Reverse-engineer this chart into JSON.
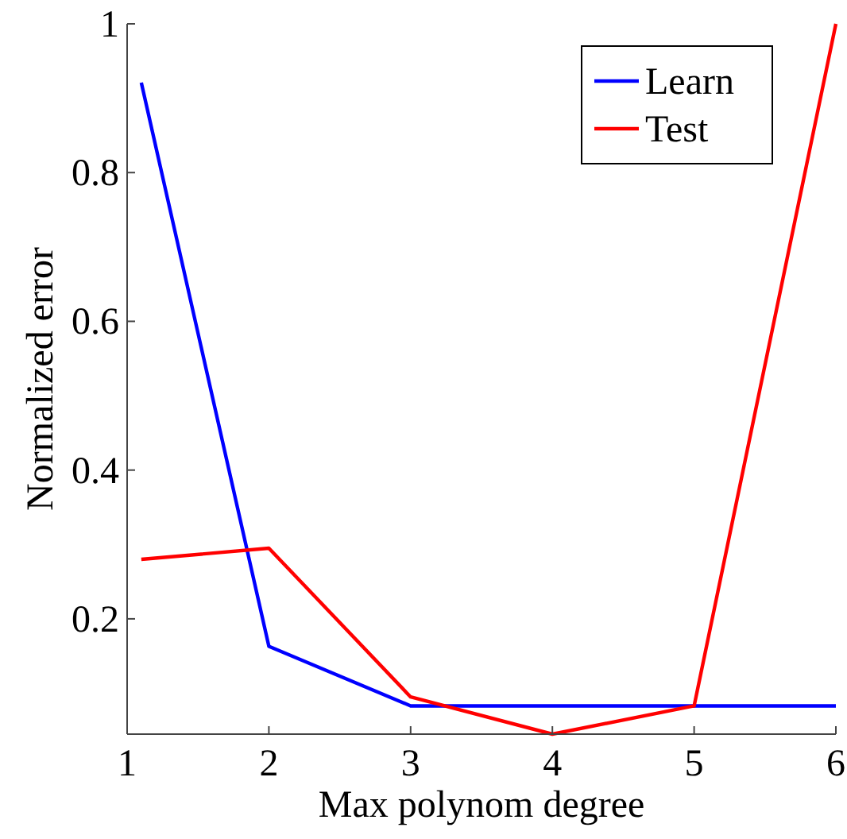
{
  "chart_data": {
    "type": "line",
    "xlabel": "Max polynom degree",
    "ylabel": "Normalized error",
    "xlim": [
      1,
      6
    ],
    "xticks": [
      1,
      2,
      3,
      4,
      5,
      6
    ],
    "ylim": [
      0.045,
      1
    ],
    "yticks": [
      0.2,
      0.4,
      0.6,
      0.8,
      1
    ],
    "legend": "top right",
    "grid": false,
    "line_style": "solid",
    "marker": "none",
    "series": [
      {
        "name": "Learn",
        "color": "#0000ff",
        "x": [
          1.1,
          2,
          3,
          4,
          5,
          6
        ],
        "values": [
          0.921,
          0.163,
          0.083,
          0.083,
          0.083,
          0.083
        ]
      },
      {
        "name": "Test",
        "color": "#ff0000",
        "x": [
          1.1,
          2,
          3,
          4,
          5,
          6
        ],
        "values": [
          0.28,
          0.295,
          0.095,
          0.045,
          0.083,
          1
        ]
      }
    ]
  }
}
